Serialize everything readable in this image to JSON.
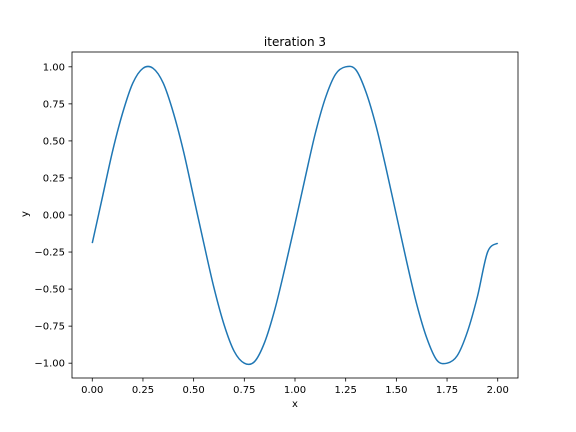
{
  "chart_data": {
    "type": "line",
    "title": "iteration 3",
    "xlabel": "x",
    "ylabel": "y",
    "xlim": [
      -0.1,
      2.1
    ],
    "ylim": [
      -1.1,
      1.1
    ],
    "grid": false,
    "legend": null,
    "x_ticks": [
      "0.00",
      "0.25",
      "0.50",
      "0.75",
      "1.00",
      "1.25",
      "1.50",
      "1.75",
      "2.00"
    ],
    "y_ticks": [
      "1.00",
      "0.75",
      "0.50",
      "0.25",
      "0.00",
      "−0.25",
      "−0.50",
      "−0.75",
      "−1.00"
    ],
    "series": [
      {
        "color": "#1f77b4",
        "x": [
          0.0,
          0.05,
          0.1,
          0.15,
          0.2,
          0.25,
          0.3,
          0.35,
          0.4,
          0.45,
          0.5,
          0.55,
          0.6,
          0.65,
          0.7,
          0.75,
          0.8,
          0.85,
          0.9,
          0.95,
          1.0,
          1.05,
          1.1,
          1.15,
          1.2,
          1.25,
          1.3,
          1.35,
          1.4,
          1.45,
          1.5,
          1.55,
          1.6,
          1.65,
          1.7,
          1.75,
          1.8,
          1.85,
          1.9,
          1.95,
          2.0
        ],
        "y": [
          -0.19,
          0.12,
          0.43,
          0.69,
          0.89,
          0.99,
          0.99,
          0.89,
          0.69,
          0.43,
          0.12,
          -0.19,
          -0.49,
          -0.74,
          -0.92,
          -1.0,
          -0.99,
          -0.86,
          -0.64,
          -0.36,
          -0.06,
          0.25,
          0.55,
          0.79,
          0.95,
          1.0,
          0.98,
          0.83,
          0.6,
          0.31,
          0.0,
          -0.31,
          -0.6,
          -0.83,
          -0.98,
          -1.0,
          -0.95,
          -0.79,
          -0.55,
          -0.25,
          -0.19
        ]
      }
    ]
  }
}
